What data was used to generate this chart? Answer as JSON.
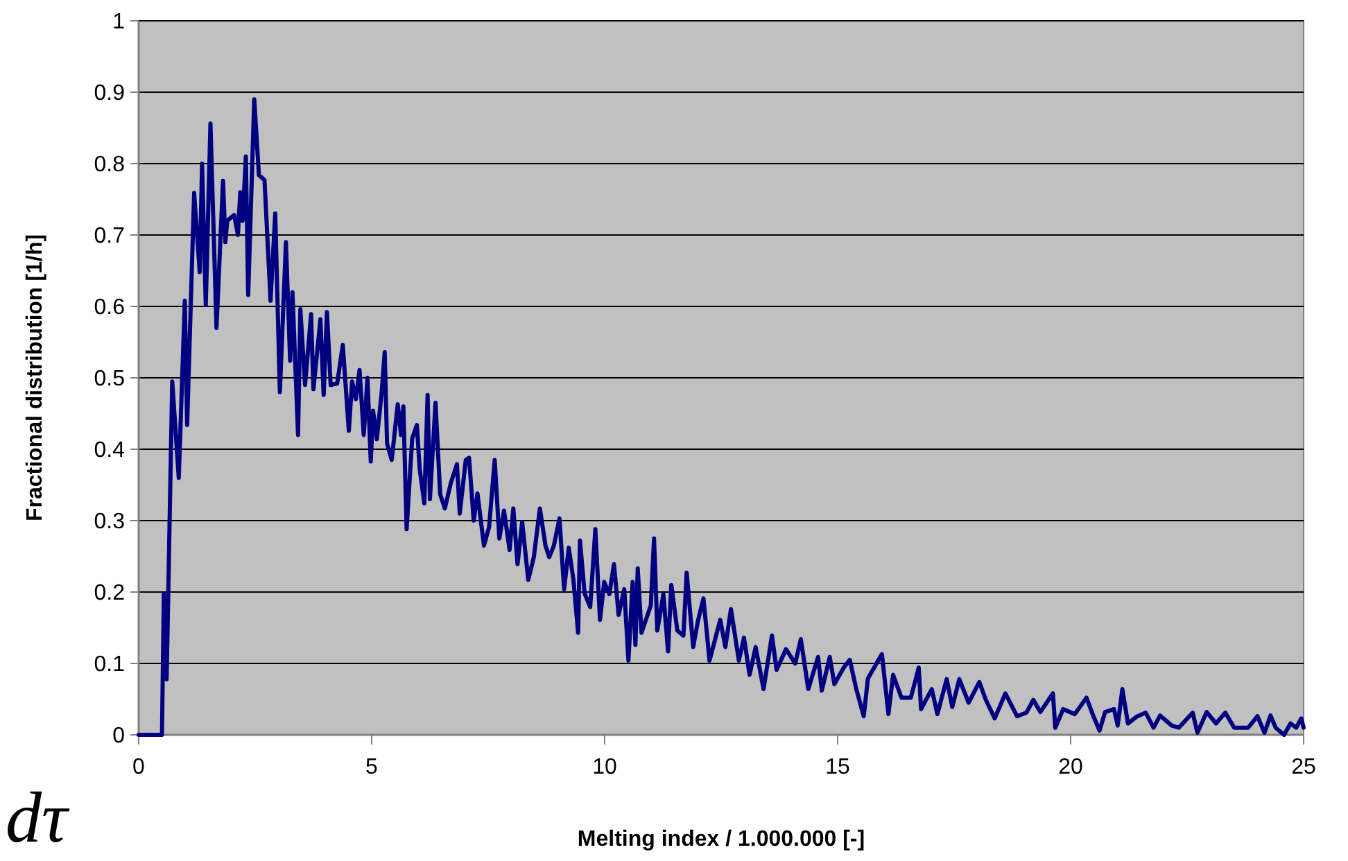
{
  "chart_data": {
    "type": "line",
    "xlabel": "Melting index / 1.000.000 [-]",
    "ylabel": "Fractional distribution [1/h]",
    "annotations": [
      "dτ"
    ],
    "xlim": [
      0,
      25
    ],
    "xticks": [
      0,
      5,
      10,
      15,
      20,
      25
    ],
    "ylim": [
      0,
      1
    ],
    "yticks": [
      0,
      0.1,
      0.2,
      0.3,
      0.4,
      0.5,
      0.6,
      0.7,
      0.8,
      0.9,
      1
    ],
    "grid": "y",
    "marker": "none",
    "line_style": "solid",
    "series": [
      {
        "color": "#000080",
        "x": [
          0,
          0.5,
          0.54,
          0.6,
          0.72,
          0.86,
          0.99,
          1.04,
          1.19,
          1.31,
          1.36,
          1.44,
          1.54,
          1.67,
          1.81,
          1.86,
          1.9,
          2.05,
          2.13,
          2.18,
          2.23,
          2.3,
          2.35,
          2.48,
          2.58,
          2.7,
          2.83,
          2.93,
          3.03,
          3.16,
          3.25,
          3.3,
          3.42,
          3.47,
          3.57,
          3.7,
          3.75,
          3.9,
          3.97,
          4.04,
          4.12,
          4.26,
          4.38,
          4.51,
          4.58,
          4.66,
          4.74,
          4.83,
          4.91,
          4.98,
          5.03,
          5.11,
          5.21,
          5.28,
          5.33,
          5.43,
          5.56,
          5.63,
          5.68,
          5.75,
          5.87,
          5.97,
          6.03,
          6.13,
          6.2,
          6.25,
          6.37,
          6.47,
          6.57,
          6.7,
          6.83,
          6.89,
          7.02,
          7.09,
          7.19,
          7.27,
          7.41,
          7.52,
          7.64,
          7.74,
          7.84,
          7.96,
          8.04,
          8.13,
          8.23,
          8.36,
          8.48,
          8.61,
          8.73,
          8.81,
          8.91,
          9.03,
          9.13,
          9.23,
          9.33,
          9.43,
          9.47,
          9.57,
          9.69,
          9.8,
          9.9,
          9.99,
          10.1,
          10.2,
          10.3,
          10.42,
          10.51,
          10.6,
          10.66,
          10.71,
          10.79,
          10.99,
          11.06,
          11.13,
          11.26,
          11.36,
          11.43,
          11.56,
          11.69,
          11.76,
          11.9,
          12,
          12.12,
          12.25,
          12.48,
          12.59,
          12.71,
          12.88,
          12.99,
          13.11,
          13.24,
          13.41,
          13.59,
          13.69,
          13.89,
          14.09,
          14.21,
          14.37,
          14.58,
          14.66,
          14.83,
          14.93,
          15.13,
          15.26,
          15.4,
          15.56,
          15.65,
          15.95,
          16.09,
          16.19,
          16.37,
          16.57,
          16.74,
          16.79,
          17.02,
          17.14,
          17.34,
          17.46,
          17.61,
          17.81,
          18.04,
          18.18,
          18.37,
          18.6,
          18.85,
          19.05,
          19.2,
          19.35,
          19.62,
          19.67,
          19.84,
          20.09,
          20.34,
          20.49,
          20.62,
          20.74,
          20.93,
          21.01,
          21.11,
          21.23,
          21.43,
          21.61,
          21.78,
          21.92,
          22.17,
          22.32,
          22.62,
          22.72,
          22.92,
          23.12,
          23.32,
          23.51,
          23.81,
          24.01,
          24.16,
          24.29,
          24.4,
          24.58,
          24.72,
          24.84,
          24.95,
          25
        ],
        "values": [
          0,
          0,
          0.197,
          0.078,
          0.495,
          0.36,
          0.608,
          0.434,
          0.759,
          0.648,
          0.8,
          0.602,
          0.856,
          0.57,
          0.776,
          0.69,
          0.72,
          0.728,
          0.7,
          0.76,
          0.72,
          0.81,
          0.616,
          0.89,
          0.784,
          0.777,
          0.608,
          0.73,
          0.48,
          0.69,
          0.524,
          0.62,
          0.42,
          0.596,
          0.49,
          0.589,
          0.484,
          0.582,
          0.476,
          0.592,
          0.49,
          0.492,
          0.546,
          0.426,
          0.495,
          0.47,
          0.511,
          0.42,
          0.5,
          0.383,
          0.454,
          0.414,
          0.476,
          0.536,
          0.408,
          0.385,
          0.463,
          0.42,
          0.46,
          0.288,
          0.415,
          0.434,
          0.373,
          0.324,
          0.476,
          0.33,
          0.465,
          0.337,
          0.317,
          0.353,
          0.379,
          0.31,
          0.385,
          0.388,
          0.3,
          0.338,
          0.265,
          0.291,
          0.385,
          0.275,
          0.314,
          0.259,
          0.317,
          0.239,
          0.298,
          0.217,
          0.249,
          0.317,
          0.265,
          0.249,
          0.265,
          0.303,
          0.204,
          0.262,
          0.217,
          0.143,
          0.272,
          0.198,
          0.179,
          0.288,
          0.161,
          0.214,
          0.197,
          0.239,
          0.168,
          0.204,
          0.104,
          0.214,
          0.126,
          0.233,
          0.143,
          0.181,
          0.275,
          0.146,
          0.197,
          0.117,
          0.21,
          0.146,
          0.139,
          0.227,
          0.123,
          0.159,
          0.191,
          0.104,
          0.161,
          0.123,
          0.176,
          0.104,
          0.136,
          0.084,
          0.123,
          0.064,
          0.139,
          0.091,
          0.12,
          0.1,
          0.134,
          0.064,
          0.109,
          0.062,
          0.109,
          0.071,
          0.094,
          0.105,
          0.064,
          0.026,
          0.079,
          0.113,
          0.029,
          0.084,
          0.052,
          0.052,
          0.094,
          0.036,
          0.064,
          0.029,
          0.078,
          0.039,
          0.078,
          0.045,
          0.074,
          0.049,
          0.023,
          0.058,
          0.026,
          0.031,
          0.049,
          0.032,
          0.058,
          0.01,
          0.036,
          0.029,
          0.052,
          0.026,
          0.006,
          0.032,
          0.036,
          0.013,
          0.064,
          0.016,
          0.026,
          0.031,
          0.01,
          0.027,
          0.013,
          0.01,
          0.031,
          0.003,
          0.032,
          0.016,
          0.031,
          0.01,
          0.01,
          0.026,
          0.003,
          0.027,
          0.01,
          0,
          0.016,
          0.01,
          0.023,
          0.01
        ]
      }
    ]
  }
}
